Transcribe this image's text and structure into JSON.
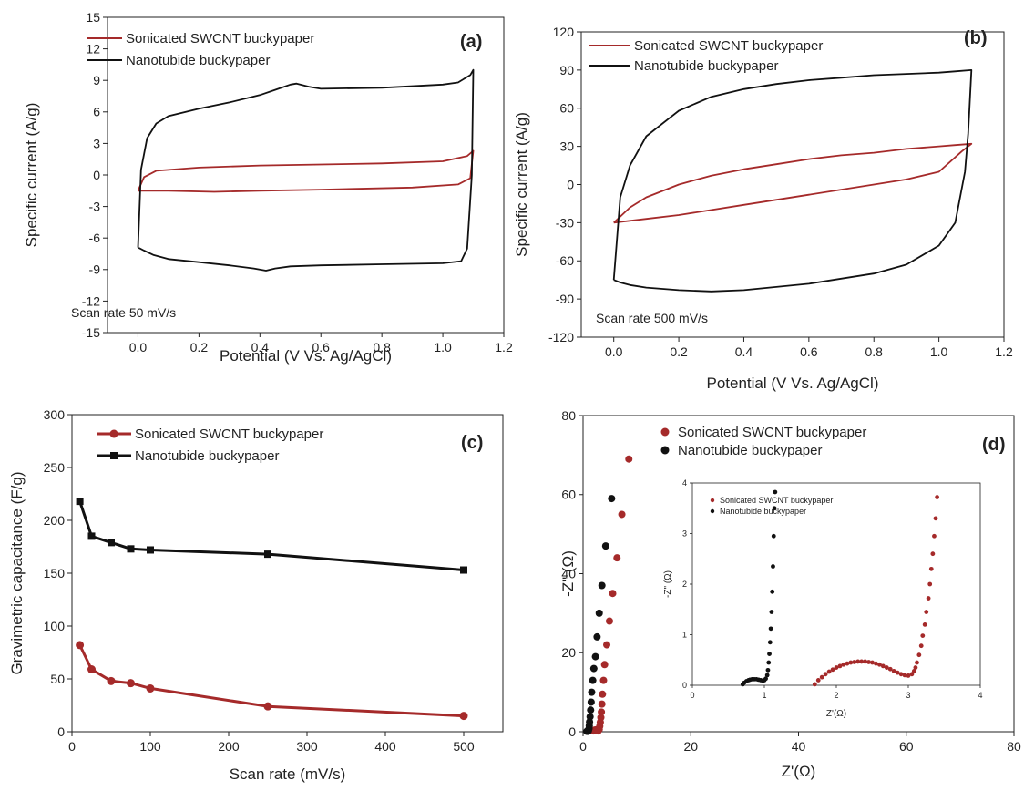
{
  "chart_data": [
    {
      "panel": "a",
      "type": "line",
      "tag": "(a)",
      "xlabel": "Potential (V Vs. Ag/AgCl)",
      "ylabel": "Specific current (A/g)",
      "xlim": [
        -0.1,
        1.2
      ],
      "ylim": [
        -15,
        15
      ],
      "xticks": [
        0.0,
        0.2,
        0.4,
        0.6,
        0.8,
        1.0,
        1.2
      ],
      "xtick_labels": [
        "0.0",
        "0.2",
        "0.4",
        "0.6",
        "0.8",
        "1.0",
        "1.2"
      ],
      "yticks": [
        -15,
        -12,
        -9,
        -6,
        -3,
        0,
        3,
        6,
        9,
        12,
        15
      ],
      "ytick_labels": [
        "-15",
        "-12",
        "-9",
        "-6",
        "-3",
        "0",
        "3",
        "6",
        "9",
        "12",
        "15"
      ],
      "annotation": "Scan rate 50 mV/s",
      "legend_position": "top-left",
      "series": [
        {
          "name": "Sonicated SWCNT buckypaper",
          "color": "#a52a2a",
          "x": [
            0.0,
            0.02,
            0.06,
            0.2,
            0.4,
            0.6,
            0.8,
            1.0,
            1.08,
            1.1,
            1.09,
            1.05,
            0.9,
            0.6,
            0.4,
            0.25,
            0.1,
            0.03,
            0.0
          ],
          "y": [
            -1.5,
            -0.2,
            0.4,
            0.7,
            0.9,
            1.0,
            1.1,
            1.3,
            1.8,
            2.3,
            -0.3,
            -0.9,
            -1.2,
            -1.4,
            -1.5,
            -1.6,
            -1.5,
            -1.5,
            -1.5
          ]
        },
        {
          "name": "Nanotubide buckypaper",
          "color": "#111111",
          "x": [
            0.0,
            0.01,
            0.03,
            0.06,
            0.1,
            0.2,
            0.3,
            0.4,
            0.45,
            0.5,
            0.52,
            0.56,
            0.6,
            0.8,
            1.0,
            1.05,
            1.09,
            1.1,
            1.095,
            1.08,
            1.06,
            1.0,
            0.8,
            0.6,
            0.5,
            0.45,
            0.42,
            0.38,
            0.3,
            0.2,
            0.1,
            0.05,
            0.02,
            0.0
          ],
          "y": [
            -6.9,
            0.5,
            3.5,
            4.9,
            5.6,
            6.3,
            6.9,
            7.6,
            8.1,
            8.6,
            8.7,
            8.4,
            8.2,
            8.3,
            8.6,
            8.8,
            9.5,
            10.0,
            0.0,
            -7.0,
            -8.2,
            -8.4,
            -8.5,
            -8.6,
            -8.7,
            -8.9,
            -9.1,
            -8.9,
            -8.6,
            -8.3,
            -8.0,
            -7.6,
            -7.2,
            -6.9
          ]
        }
      ]
    },
    {
      "panel": "b",
      "type": "line",
      "tag": "(b)",
      "xlabel": "Potential (V Vs. Ag/AgCl)",
      "ylabel": "Specific current (A/g)",
      "xlim": [
        -0.1,
        1.2
      ],
      "ylim": [
        -120,
        120
      ],
      "xticks": [
        0.0,
        0.2,
        0.4,
        0.6,
        0.8,
        1.0,
        1.2
      ],
      "xtick_labels": [
        "0.0",
        "0.2",
        "0.4",
        "0.6",
        "0.8",
        "1.0",
        "1.2"
      ],
      "yticks": [
        -120,
        -90,
        -60,
        -30,
        0,
        30,
        60,
        90,
        120
      ],
      "ytick_labels": [
        "-120",
        "-90",
        "-60",
        "-30",
        "0",
        "30",
        "60",
        "90",
        "120"
      ],
      "annotation": "Scan rate 500 mV/s",
      "legend_position": "top-left",
      "series": [
        {
          "name": "Sonicated SWCNT buckypaper",
          "color": "#a52a2a",
          "x": [
            0.0,
            0.05,
            0.1,
            0.2,
            0.3,
            0.4,
            0.5,
            0.6,
            0.7,
            0.8,
            0.9,
            1.0,
            1.05,
            1.1,
            1.07,
            1.0,
            0.9,
            0.8,
            0.6,
            0.4,
            0.2,
            0.1,
            0.0
          ],
          "y": [
            -30,
            -18,
            -10,
            0,
            7,
            12,
            16,
            20,
            23,
            25,
            28,
            30,
            31,
            32,
            26,
            10,
            4,
            0,
            -8,
            -16,
            -24,
            -27,
            -30
          ]
        },
        {
          "name": "Nanotubide buckypaper",
          "color": "#111111",
          "x": [
            0.0,
            0.02,
            0.05,
            0.1,
            0.2,
            0.3,
            0.4,
            0.5,
            0.6,
            0.7,
            0.8,
            0.9,
            1.0,
            1.05,
            1.1,
            1.09,
            1.08,
            1.05,
            1.0,
            0.9,
            0.8,
            0.6,
            0.4,
            0.3,
            0.2,
            0.1,
            0.05,
            0.02,
            0.0
          ],
          "y": [
            -75,
            -10,
            15,
            38,
            58,
            69,
            75,
            79,
            82,
            84,
            86,
            87,
            88,
            89,
            90,
            40,
            10,
            -30,
            -48,
            -63,
            -70,
            -78,
            -83,
            -84,
            -83,
            -81,
            -79,
            -77,
            -75
          ]
        }
      ]
    },
    {
      "panel": "c",
      "type": "line",
      "tag": "(c)",
      "xlabel": "Scan rate (mV/s)",
      "ylabel": "Gravimetric capacitance (F/g)",
      "xlim": [
        0,
        550
      ],
      "ylim": [
        0,
        300
      ],
      "xticks": [
        0,
        100,
        200,
        300,
        400,
        500
      ],
      "xtick_labels": [
        "0",
        "100",
        "200",
        "300",
        "400",
        "500"
      ],
      "yticks": [
        0,
        50,
        100,
        150,
        200,
        250,
        300
      ],
      "ytick_labels": [
        "0",
        "50",
        "100",
        "150",
        "200",
        "250",
        "300"
      ],
      "legend_position": "top-left",
      "series": [
        {
          "name": "Sonicated SWCNT buckypaper",
          "color": "#a52a2a",
          "marker": "circle",
          "x": [
            10,
            25,
            50,
            75,
            100,
            250,
            500
          ],
          "y": [
            82,
            59,
            48,
            46,
            41,
            24,
            15
          ]
        },
        {
          "name": "Nanotubide buckypaper",
          "color": "#111111",
          "marker": "square",
          "x": [
            10,
            25,
            50,
            75,
            100,
            250,
            500
          ],
          "y": [
            218,
            185,
            179,
            173,
            172,
            168,
            153
          ]
        }
      ]
    },
    {
      "panel": "d",
      "type": "scatter",
      "tag": "(d)",
      "xlabel": "Z'(Ω)",
      "ylabel": "-Z\" (Ω)",
      "xlim": [
        0,
        80
      ],
      "ylim": [
        0,
        80
      ],
      "xticks": [
        0,
        20,
        40,
        60,
        80
      ],
      "xtick_labels": [
        "0",
        "20",
        "40",
        "60",
        "80"
      ],
      "yticks": [
        0,
        20,
        40,
        60,
        80
      ],
      "ytick_labels": [
        "0",
        "20",
        "40",
        "60",
        "80"
      ],
      "legend_position": "top-left",
      "series": [
        {
          "name": "Sonicated SWCNT buckypaper",
          "color": "#a52a2a",
          "x": [
            1.9,
            2.1,
            2.4,
            2.6,
            2.8,
            3.0,
            3.1,
            3.2,
            3.3,
            3.4,
            3.5,
            3.6,
            3.8,
            4.0,
            4.4,
            4.9,
            5.5,
            6.3,
            7.2,
            8.5
          ],
          "y": [
            0.2,
            0.4,
            0.5,
            0.4,
            0.2,
            0.6,
            1.4,
            2.4,
            3.6,
            5.0,
            7.0,
            9.5,
            13.0,
            17.0,
            22.0,
            28.0,
            35.0,
            44.0,
            55.0,
            69.0
          ]
        },
        {
          "name": "Nanotubide buckypaper",
          "color": "#111111",
          "x": [
            0.7,
            0.8,
            0.9,
            1.0,
            1.1,
            1.15,
            1.2,
            1.3,
            1.4,
            1.5,
            1.6,
            1.8,
            2.0,
            2.3,
            2.6,
            3.0,
            3.5,
            4.2,
            5.3
          ],
          "y": [
            0.1,
            0.15,
            0.1,
            0.3,
            0.8,
            1.5,
            2.5,
            3.8,
            5.5,
            7.5,
            10.0,
            13.0,
            16.0,
            19.0,
            24.0,
            30.0,
            37.0,
            47.0,
            59.0
          ]
        }
      ],
      "inset": {
        "xlabel": "Z'(Ω)",
        "ylabel": "-Z\" (Ω)",
        "xlim": [
          0,
          4
        ],
        "ylim": [
          0,
          4
        ],
        "xticks": [
          0,
          1,
          2,
          3,
          4
        ],
        "xtick_labels": [
          "0",
          "1",
          "2",
          "3",
          "4"
        ],
        "yticks": [
          0,
          1,
          2,
          3,
          4
        ],
        "ytick_labels": [
          "0",
          "1",
          "2",
          "3",
          "4"
        ],
        "legend_position": "top-left",
        "series": [
          {
            "name": "Sonicated SWCNT buckypaper",
            "color": "#a52a2a",
            "x": [
              1.7,
              1.75,
              1.8,
              1.85,
              1.9,
              1.95,
              2.0,
              2.05,
              2.1,
              2.15,
              2.2,
              2.25,
              2.3,
              2.35,
              2.4,
              2.45,
              2.5,
              2.55,
              2.6,
              2.65,
              2.7,
              2.75,
              2.8,
              2.85,
              2.9,
              2.95,
              3.0,
              3.05,
              3.08,
              3.1,
              3.12,
              3.15,
              3.18,
              3.2,
              3.23,
              3.25,
              3.28,
              3.3,
              3.32,
              3.34,
              3.36,
              3.38,
              3.4
            ],
            "y": [
              0.02,
              0.1,
              0.16,
              0.22,
              0.27,
              0.31,
              0.35,
              0.38,
              0.41,
              0.43,
              0.45,
              0.46,
              0.47,
              0.47,
              0.47,
              0.46,
              0.45,
              0.43,
              0.41,
              0.38,
              0.35,
              0.32,
              0.28,
              0.25,
              0.22,
              0.2,
              0.19,
              0.22,
              0.28,
              0.35,
              0.45,
              0.6,
              0.78,
              0.98,
              1.2,
              1.45,
              1.72,
              2.0,
              2.3,
              2.6,
              2.95,
              3.3,
              3.72
            ]
          },
          {
            "name": "Nanotubide buckypaper",
            "color": "#111111",
            "x": [
              0.7,
              0.72,
              0.75,
              0.78,
              0.8,
              0.83,
              0.86,
              0.89,
              0.92,
              0.95,
              0.98,
              1.0,
              1.02,
              1.04,
              1.05,
              1.06,
              1.07,
              1.08,
              1.09,
              1.1,
              1.11,
              1.12,
              1.13,
              1.14,
              1.15
            ],
            "y": [
              0.02,
              0.05,
              0.08,
              0.1,
              0.11,
              0.12,
              0.12,
              0.12,
              0.11,
              0.1,
              0.09,
              0.1,
              0.13,
              0.2,
              0.3,
              0.45,
              0.62,
              0.85,
              1.12,
              1.45,
              1.85,
              2.35,
              2.95,
              3.5,
              3.82
            ]
          }
        ]
      }
    }
  ]
}
